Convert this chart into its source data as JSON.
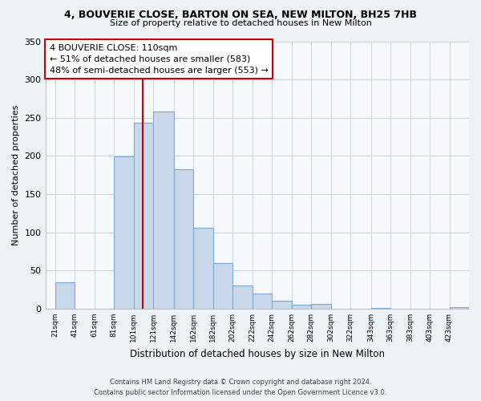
{
  "title": "4, BOUVERIE CLOSE, BARTON ON SEA, NEW MILTON, BH25 7HB",
  "subtitle": "Size of property relative to detached houses in New Milton",
  "xlabel": "Distribution of detached houses by size in New Milton",
  "ylabel": "Number of detached properties",
  "bar_color": "#c8d8ea",
  "bar_edge_color": "#7aaacf",
  "vline_color": "#cc0000",
  "vline_x": 110,
  "categories": [
    "21sqm",
    "41sqm",
    "61sqm",
    "81sqm",
    "101sqm",
    "121sqm",
    "142sqm",
    "162sqm",
    "182sqm",
    "202sqm",
    "222sqm",
    "242sqm",
    "262sqm",
    "282sqm",
    "302sqm",
    "322sqm",
    "343sqm",
    "363sqm",
    "383sqm",
    "403sqm",
    "423sqm"
  ],
  "bin_lefts": [
    21,
    41,
    61,
    81,
    101,
    121,
    142,
    162,
    182,
    202,
    222,
    242,
    262,
    282,
    302,
    322,
    343,
    363,
    383,
    403,
    423
  ],
  "bin_rights": [
    41,
    61,
    81,
    101,
    121,
    142,
    162,
    182,
    202,
    222,
    242,
    262,
    282,
    302,
    322,
    343,
    363,
    383,
    403,
    423,
    443
  ],
  "values": [
    35,
    0,
    0,
    199,
    243,
    258,
    183,
    106,
    60,
    30,
    20,
    10,
    5,
    6,
    0,
    0,
    1,
    0,
    0,
    0,
    2
  ],
  "ylim": [
    0,
    350
  ],
  "yticks": [
    0,
    50,
    100,
    150,
    200,
    250,
    300,
    350
  ],
  "xlim": [
    11,
    443
  ],
  "annotation_title": "4 BOUVERIE CLOSE: 110sqm",
  "annotation_line1": "← 51% of detached houses are smaller (583)",
  "annotation_line2": "48% of semi-detached houses are larger (553) →",
  "annotation_box_color": "#ffffff",
  "annotation_box_edge": "#cc0000",
  "footer_line1": "Contains HM Land Registry data © Crown copyright and database right 2024.",
  "footer_line2": "Contains public sector information licensed under the Open Government Licence v3.0.",
  "background_color": "#edf2f7",
  "plot_bg_color": "#f5f8fc",
  "grid_color": "#c8d4e0"
}
